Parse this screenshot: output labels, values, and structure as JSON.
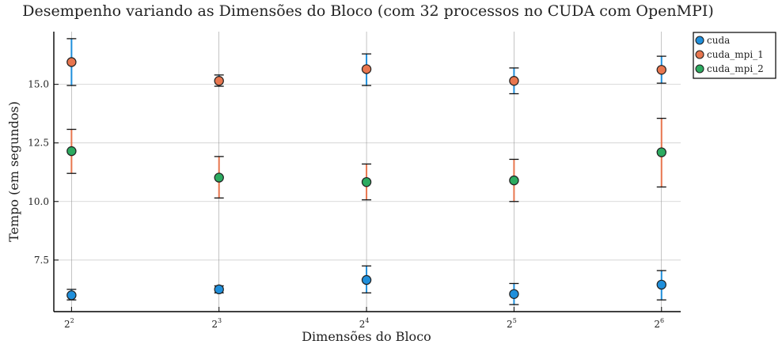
{
  "chart_data": {
    "type": "scatter",
    "title": "Desempenho variando as Dimensões do Bloco (com 32 processos no CUDA com OpenMPI)",
    "xlabel": "Dimensões do Bloco",
    "ylabel": "Tempo (em segundos)",
    "x_tick_labels": [
      {
        "base": "2",
        "exp": "2"
      },
      {
        "base": "2",
        "exp": "3"
      },
      {
        "base": "2",
        "exp": "4"
      },
      {
        "base": "2",
        "exp": "5"
      },
      {
        "base": "2",
        "exp": "6"
      }
    ],
    "y_ticks": [
      7.5,
      10.0,
      12.5,
      15.0
    ],
    "y_tick_labels": [
      "7.5",
      "10.0",
      "12.5",
      "15.0"
    ],
    "xlim": [
      1.88,
      6.13
    ],
    "ylim": [
      5.3,
      17.25
    ],
    "grid": true,
    "legend_position": "top-right",
    "series": [
      {
        "name": "cuda",
        "color": "#1f8fdb",
        "errorbar_color": "#1f8fdb",
        "x": [
          2,
          3,
          4,
          5,
          6
        ],
        "y": [
          6.0,
          6.25,
          6.65,
          6.05,
          6.45
        ],
        "err_low": [
          5.8,
          6.1,
          6.1,
          5.6,
          5.8
        ],
        "err_high": [
          6.25,
          6.4,
          7.25,
          6.5,
          7.05
        ]
      },
      {
        "name": "cuda_mpi_1",
        "color": "#e8764f",
        "errorbar_color": "#1f8fdb",
        "x": [
          2,
          3,
          4,
          5,
          6
        ],
        "y": [
          15.95,
          15.15,
          15.65,
          15.15,
          15.62
        ],
        "err_low": [
          14.95,
          14.92,
          14.95,
          14.6,
          15.05
        ],
        "err_high": [
          16.95,
          15.4,
          16.3,
          15.7,
          16.2
        ]
      },
      {
        "name": "cuda_mpi_2",
        "color": "#2cab60",
        "errorbar_color": "#e8764f",
        "x": [
          2,
          3,
          4,
          5,
          6
        ],
        "y": [
          12.15,
          11.02,
          10.83,
          10.9,
          12.1
        ],
        "err_low": [
          11.2,
          10.15,
          10.07,
          10.0,
          10.62
        ],
        "err_high": [
          13.08,
          11.92,
          11.6,
          11.8,
          13.55
        ]
      }
    ]
  }
}
